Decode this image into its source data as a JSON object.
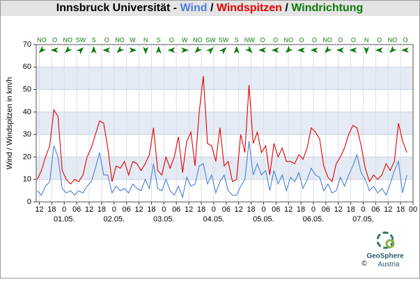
{
  "chart_data": {
    "type": "line",
    "title_prefix": "Innsbruck Universität - ",
    "title_separator": " / ",
    "direction_name": "Windrichtung",
    "direction_color": "#0a7a0a",
    "y_label": "Wind / Windspitzen in km/h",
    "ylim": [
      0,
      70
    ],
    "yticks": [
      0,
      10,
      20,
      30,
      40,
      50,
      60,
      70
    ],
    "xlim": [
      -13.5,
      168
    ],
    "xticks": [
      {
        "value": -12,
        "label": "12"
      },
      {
        "value": -6,
        "label": "18"
      },
      {
        "value": 0,
        "label": "0"
      },
      {
        "value": 6,
        "label": "06"
      },
      {
        "value": 12,
        "label": "12"
      },
      {
        "value": 18,
        "label": "18"
      },
      {
        "value": 24,
        "label": "0"
      },
      {
        "value": 30,
        "label": "06"
      },
      {
        "value": 36,
        "label": "12"
      },
      {
        "value": 42,
        "label": "18"
      },
      {
        "value": 48,
        "label": "0"
      },
      {
        "value": 54,
        "label": "06"
      },
      {
        "value": 60,
        "label": "12"
      },
      {
        "value": 66,
        "label": "18"
      },
      {
        "value": 72,
        "label": "0"
      },
      {
        "value": 78,
        "label": "06"
      },
      {
        "value": 84,
        "label": "12"
      },
      {
        "value": 90,
        "label": "18"
      },
      {
        "value": 96,
        "label": "0"
      },
      {
        "value": 102,
        "label": "06"
      },
      {
        "value": 108,
        "label": "12"
      },
      {
        "value": 114,
        "label": "18"
      },
      {
        "value": 120,
        "label": "0"
      },
      {
        "value": 126,
        "label": "06"
      },
      {
        "value": 132,
        "label": "12"
      },
      {
        "value": 138,
        "label": "18"
      },
      {
        "value": 144,
        "label": "0"
      },
      {
        "value": 150,
        "label": "06"
      },
      {
        "value": 156,
        "label": "12"
      },
      {
        "value": 162,
        "label": "18"
      },
      {
        "value": 168,
        "label": "00"
      }
    ],
    "date_ticks": [
      {
        "value": 0,
        "label": "01.05."
      },
      {
        "value": 24,
        "label": "02.05."
      },
      {
        "value": 48,
        "label": "03.05."
      },
      {
        "value": 72,
        "label": "04.05."
      },
      {
        "value": 96,
        "label": "05.05."
      },
      {
        "value": 120,
        "label": "06.05."
      },
      {
        "value": 144,
        "label": "07.05."
      }
    ],
    "x": [
      -13,
      -11,
      -9,
      -7,
      -5,
      -3,
      -1,
      1,
      3,
      5,
      7,
      9,
      11,
      13,
      15,
      17,
      19,
      21,
      23,
      25,
      27,
      29,
      31,
      33,
      35,
      37,
      39,
      41,
      43,
      45,
      47,
      49,
      51,
      53,
      55,
      57,
      59,
      61,
      63,
      65,
      67,
      69,
      71,
      73,
      75,
      77,
      79,
      81,
      83,
      85,
      87,
      89,
      91,
      93,
      95,
      97,
      99,
      101,
      103,
      105,
      107,
      109,
      111,
      113,
      115,
      117,
      119,
      121,
      123,
      125,
      127,
      129,
      131,
      133,
      135,
      137,
      139,
      141,
      143,
      145,
      147,
      149,
      151,
      153,
      155,
      157,
      159,
      161,
      163,
      165
    ],
    "series": [
      {
        "name": "Wind",
        "color": "#4a7fd8",
        "values": [
          5,
          3,
          7,
          9,
          25,
          20,
          6,
          4,
          5,
          3,
          5,
          4,
          7,
          9,
          15,
          22,
          12,
          12,
          4,
          7,
          5,
          6,
          4,
          8,
          6,
          5,
          10,
          6,
          17,
          6,
          5,
          10,
          5,
          3,
          7,
          2,
          11,
          7,
          8,
          16,
          17,
          8,
          12,
          4,
          9,
          12,
          5,
          3,
          3,
          7,
          10,
          27,
          12,
          17,
          12,
          14,
          5,
          14,
          8,
          12,
          5,
          11,
          9,
          13,
          6,
          10,
          15,
          12,
          11,
          5,
          8,
          4,
          5,
          11,
          7,
          12,
          16,
          21,
          13,
          10,
          5,
          7,
          4,
          6,
          3,
          8,
          14,
          18,
          4,
          12
        ]
      },
      {
        "name": "Windspitzen",
        "color": "#e00000",
        "values": [
          10,
          14,
          20,
          25,
          41,
          38,
          14,
          10,
          8,
          10,
          9,
          12,
          20,
          24,
          30,
          36,
          35,
          24,
          9,
          16,
          15,
          18,
          12,
          18,
          17,
          14,
          17,
          21,
          33,
          14,
          12,
          20,
          15,
          20,
          29,
          13,
          27,
          31,
          16,
          40,
          56,
          26,
          25,
          18,
          33,
          16,
          18,
          9,
          10,
          30,
          22,
          52,
          26,
          31,
          22,
          25,
          12,
          26,
          20,
          24,
          18,
          18,
          17,
          21,
          19,
          24,
          33,
          31,
          28,
          16,
          11,
          9,
          17,
          20,
          24,
          30,
          34,
          33,
          25,
          15,
          9,
          12,
          10,
          12,
          17,
          14,
          18,
          35,
          27,
          22
        ]
      }
    ],
    "directions": [
      "NO",
      "O",
      "NO",
      "SW",
      "S",
      "O",
      "NO",
      "W",
      "N",
      "S",
      "O",
      "W",
      "NO",
      "SW",
      "SW",
      "S",
      "NW",
      "O",
      "O",
      "NO",
      "O",
      "O",
      "NO",
      "O",
      "O",
      "N",
      "O",
      "NO",
      "O"
    ],
    "logo": {
      "name": "GeoSphere",
      "sub": "Austria",
      "copyright": "©"
    }
  }
}
